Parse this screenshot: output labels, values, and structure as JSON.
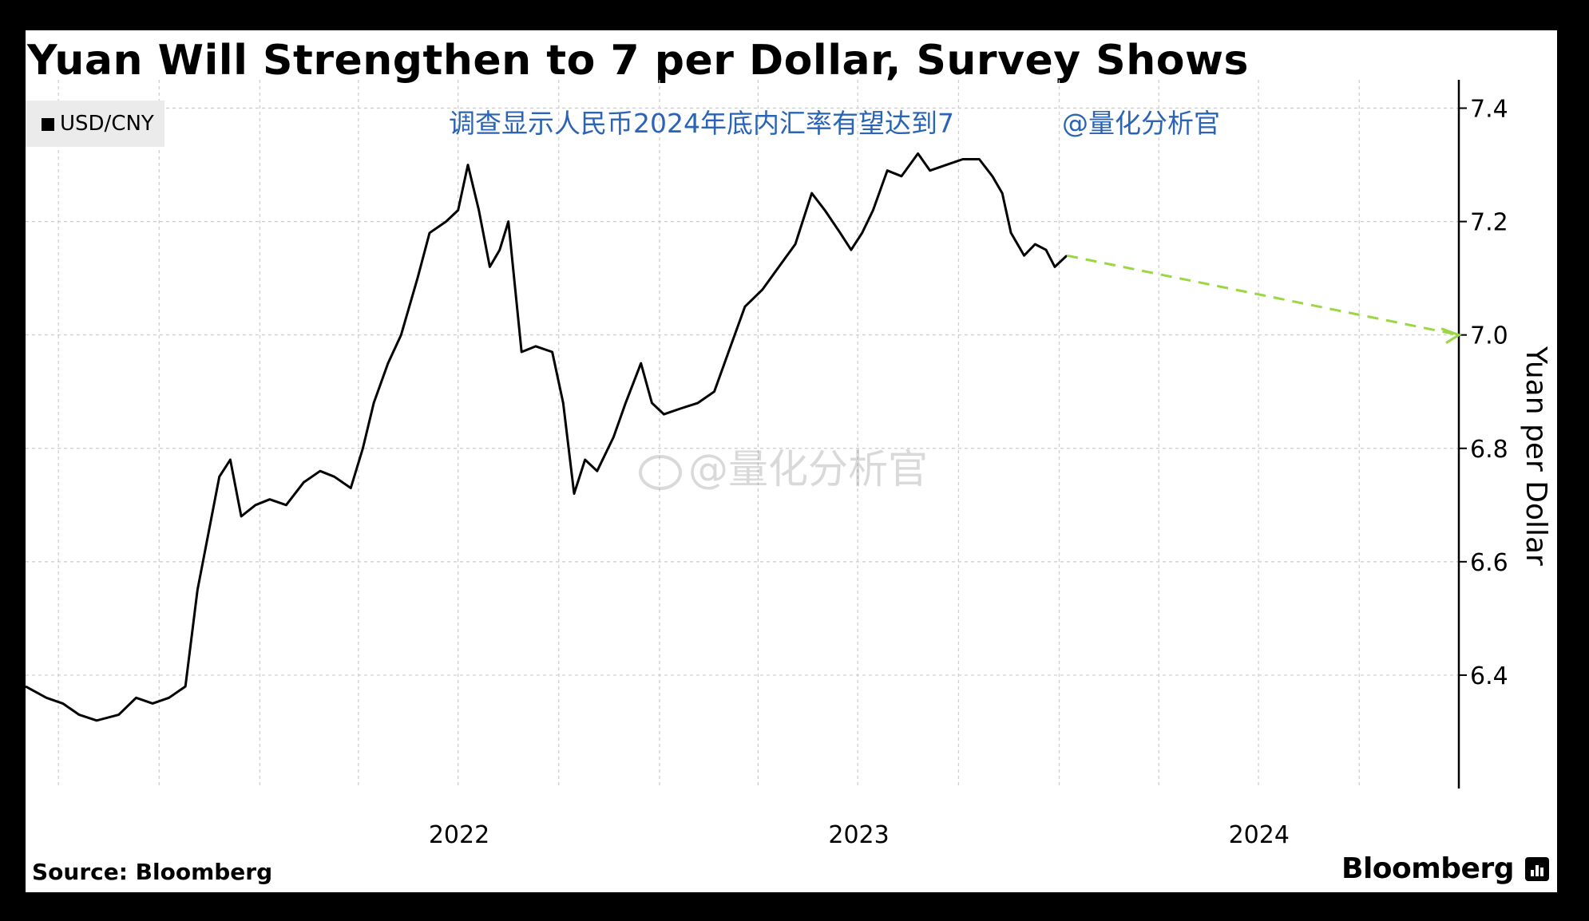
{
  "chart_data": {
    "type": "line",
    "title": "Yuan Will Strengthen to 7 per Dollar, Survey Shows",
    "ylabel": "Yuan per Dollar",
    "xlabel": "",
    "ylim": [
      6.2,
      7.45
    ],
    "y_ticks": [
      "6.4",
      "6.6",
      "6.8",
      "7.0",
      "7.2",
      "7.4"
    ],
    "x_ticks": [
      "2022",
      "2023",
      "2024"
    ],
    "grid": true,
    "legend_position": "top-left",
    "series": [
      {
        "name": "USD/CNY",
        "color": "#000000",
        "style": "solid",
        "points": [
          [
            "2021-06-01",
            6.38
          ],
          [
            "2021-06-20",
            6.36
          ],
          [
            "2021-07-05",
            6.35
          ],
          [
            "2021-07-20",
            6.33
          ],
          [
            "2021-08-05",
            6.32
          ],
          [
            "2021-08-25",
            6.33
          ],
          [
            "2021-09-10",
            6.36
          ],
          [
            "2021-09-25",
            6.35
          ],
          [
            "2021-10-10",
            6.36
          ],
          [
            "2021-10-25",
            6.38
          ],
          [
            "2021-11-05",
            6.55
          ],
          [
            "2021-11-15",
            6.65
          ],
          [
            "2021-11-25",
            6.75
          ],
          [
            "2021-12-05",
            6.78
          ],
          [
            "2021-12-15",
            6.68
          ],
          [
            "2021-12-28",
            6.7
          ],
          [
            "2022-01-10",
            6.71
          ],
          [
            "2022-01-25",
            6.7
          ],
          [
            "2022-02-10",
            6.74
          ],
          [
            "2022-02-25",
            6.76
          ],
          [
            "2022-03-10",
            6.75
          ],
          [
            "2022-03-25",
            6.73
          ],
          [
            "2022-04-05",
            6.8
          ],
          [
            "2022-04-15",
            6.88
          ],
          [
            "2022-04-28",
            6.95
          ],
          [
            "2022-05-10",
            7.0
          ],
          [
            "2022-05-25",
            7.1
          ],
          [
            "2022-06-05",
            7.18
          ],
          [
            "2022-06-20",
            7.2
          ],
          [
            "2022-07-01",
            7.22
          ],
          [
            "2022-07-10",
            7.3
          ],
          [
            "2022-07-20",
            7.22
          ],
          [
            "2022-07-30",
            7.12
          ],
          [
            "2022-08-08",
            7.15
          ],
          [
            "2022-08-16",
            7.2
          ],
          [
            "2022-08-28",
            6.97
          ],
          [
            "2022-09-10",
            6.98
          ],
          [
            "2022-09-25",
            6.97
          ],
          [
            "2022-10-05",
            6.88
          ],
          [
            "2022-10-15",
            6.72
          ],
          [
            "2022-10-25",
            6.78
          ],
          [
            "2022-11-05",
            6.76
          ],
          [
            "2022-11-20",
            6.82
          ],
          [
            "2022-12-01",
            6.88
          ],
          [
            "2022-12-15",
            6.95
          ],
          [
            "2022-12-25",
            6.88
          ],
          [
            "2023-01-05",
            6.86
          ],
          [
            "2023-01-20",
            6.87
          ],
          [
            "2023-02-05",
            6.88
          ],
          [
            "2023-02-20",
            6.9
          ],
          [
            "2023-03-05",
            6.97
          ],
          [
            "2023-03-20",
            7.05
          ],
          [
            "2023-04-05",
            7.08
          ],
          [
            "2023-04-20",
            7.12
          ],
          [
            "2023-05-05",
            7.16
          ],
          [
            "2023-05-20",
            7.25
          ],
          [
            "2023-06-01",
            7.22
          ],
          [
            "2023-06-15",
            7.18
          ],
          [
            "2023-06-25",
            7.15
          ],
          [
            "2023-07-05",
            7.18
          ],
          [
            "2023-07-15",
            7.22
          ],
          [
            "2023-07-28",
            7.29
          ],
          [
            "2023-08-10",
            7.28
          ],
          [
            "2023-08-25",
            7.32
          ],
          [
            "2023-09-05",
            7.29
          ],
          [
            "2023-09-20",
            7.3
          ],
          [
            "2023-10-05",
            7.31
          ],
          [
            "2023-10-20",
            7.31
          ],
          [
            "2023-11-01",
            7.28
          ],
          [
            "2023-11-10",
            7.25
          ],
          [
            "2023-11-18",
            7.18
          ],
          [
            "2023-11-30",
            7.14
          ],
          [
            "2023-12-10",
            7.16
          ],
          [
            "2023-12-20",
            7.15
          ],
          [
            "2023-12-28",
            7.12
          ],
          [
            "2024-01-08",
            7.14
          ]
        ]
      },
      {
        "name": "",
        "color": "#9bd645",
        "style": "dashed",
        "points": [
          [
            "2024-01-08",
            7.14
          ],
          [
            "2024-12-31",
            7.0
          ]
        ]
      }
    ]
  },
  "legend": {
    "label": "USD/CNY"
  },
  "annotation": {
    "text": "调查显示人民币2024年底内汇率有望达到7",
    "handle": "@量化分析官"
  },
  "watermark": {
    "text": "@量化分析官"
  },
  "footer": {
    "source": "Source: Bloomberg",
    "brand": "Bloomberg"
  },
  "colors": {
    "annotation": "#2b64b5",
    "forecast": "#9bd645",
    "grid": "#cccccc"
  }
}
